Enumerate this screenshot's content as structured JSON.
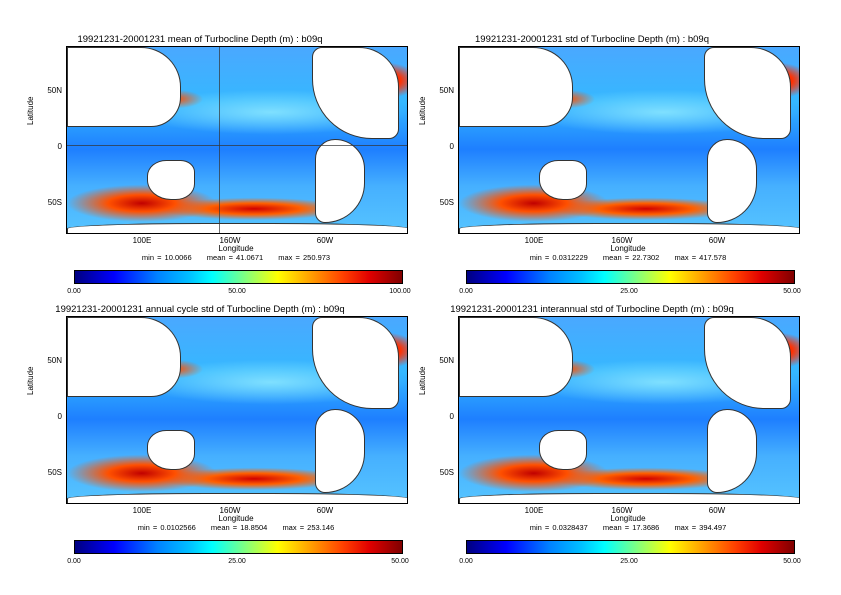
{
  "panels": [
    {
      "title": "19921231-20001231 mean of Turbocline Depth (m) : b09q",
      "ylabel": "Latitude",
      "xlabel": "Longitude",
      "yticks": [
        "50N",
        "0",
        "50S"
      ],
      "xticks": [
        "100E",
        "160W",
        "60W"
      ],
      "stats": {
        "min": "min = 10.0066",
        "mean": "mean = 41.0671",
        "max": "max = 250.973"
      },
      "colorbar": {
        "min": "0.00",
        "mid": "50.00",
        "max": "100.00"
      }
    },
    {
      "title": "19921231-20001231 std of Turbocline Depth (m) : b09q",
      "ylabel": "Latitude",
      "xlabel": "Longitude",
      "yticks": [
        "50N",
        "0",
        "50S"
      ],
      "xticks": [
        "100E",
        "160W",
        "60W"
      ],
      "stats": {
        "min": "min = 0.0312229",
        "mean": "mean = 22.7302",
        "max": "max = 417.578"
      },
      "colorbar": {
        "min": "0.00",
        "mid": "25.00",
        "max": "50.00"
      }
    },
    {
      "title": "19921231-20001231 annual cycle std of Turbocline Depth (m) : b09q",
      "ylabel": "Latitude",
      "xlabel": "Longitude",
      "yticks": [
        "50N",
        "0",
        "50S"
      ],
      "xticks": [
        "100E",
        "160W",
        "60W"
      ],
      "stats": {
        "min": "min = 0.0102566",
        "mean": "mean = 18.8504",
        "max": "max = 253.146"
      },
      "colorbar": {
        "min": "0.00",
        "mid": "25.00",
        "max": "50.00"
      }
    },
    {
      "title": "19921231-20001231 interannual std of Turbocline Depth (m) : b09q",
      "ylabel": "Latitude",
      "xlabel": "Longitude",
      "yticks": [
        "50N",
        "0",
        "50S"
      ],
      "xticks": [
        "100E",
        "160W",
        "60W"
      ],
      "stats": {
        "min": "min = 0.0328437",
        "mean": "mean = 17.3686",
        "max": "max = 394.497"
      },
      "colorbar": {
        "min": "0.00",
        "mid": "25.00",
        "max": "50.00"
      }
    }
  ]
}
